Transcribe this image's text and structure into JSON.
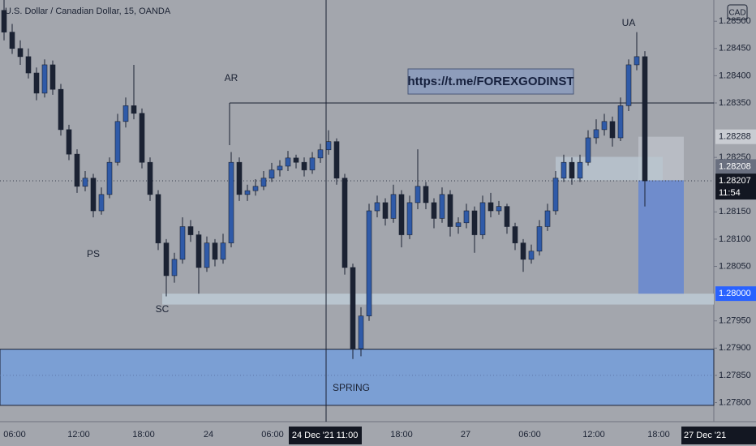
{
  "chart_data": {
    "type": "candlestick",
    "title": "U.S. Dollar / Canadian Dollar, 15, OANDA",
    "currency": "CAD",
    "link": "https://t.me/FOREXGODINST",
    "annotations": [
      "AR",
      "PS",
      "SC",
      "SPRING",
      "UA"
    ],
    "x_labels": [
      "06:00",
      "12:00",
      "18:00",
      "24",
      "06:00",
      "24 Dec '21",
      "11:00",
      "18:00",
      "27",
      "06:00",
      "12:00",
      "18:00",
      "27 Dec '21"
    ],
    "countdown": "11:54",
    "up_color": "#2f5aa8",
    "down_color": "#1b2233",
    "ylim": [
      1.27765,
      1.28539
    ],
    "yticks": [
      {
        "value": 1.285,
        "label": "1.28500"
      },
      {
        "value": 1.2845,
        "label": "1.28450"
      },
      {
        "value": 1.284,
        "label": "1.28400"
      },
      {
        "value": 1.2835,
        "label": "1.28350"
      },
      {
        "value": 1.2825,
        "label": "1.28250"
      },
      {
        "value": 1.2815,
        "label": "1.28150"
      },
      {
        "value": 1.281,
        "label": "1.28100"
      },
      {
        "value": 1.2805,
        "label": "1.28050"
      },
      {
        "value": 1.2795,
        "label": "1.27950"
      },
      {
        "value": 1.279,
        "label": "1.27900"
      },
      {
        "value": 1.2785,
        "label": "1.27850"
      },
      {
        "value": 1.278,
        "label": "1.27800"
      }
    ],
    "badges": [
      {
        "value": 1.28288,
        "label": "1.28288"
      },
      {
        "value": 1.28208,
        "label": "1.28208"
      },
      {
        "value": 1.28207,
        "label": "1.28207"
      },
      {
        "value": 1.28,
        "label": "1.28000"
      }
    ],
    "resistance": 1.2835,
    "support_zone": [
      1.28,
      1.2798
    ],
    "demand_zone": [
      1.27898,
      1.27795
    ],
    "candles": [
      [
        1.2852,
        1.2854,
        1.28465,
        1.2848
      ],
      [
        1.2848,
        1.28495,
        1.2844,
        1.2845
      ],
      [
        1.2845,
        1.28465,
        1.2842,
        1.28435
      ],
      [
        1.28435,
        1.2845,
        1.28395,
        1.28405
      ],
      [
        1.28405,
        1.28415,
        1.28355,
        1.28368
      ],
      [
        1.28368,
        1.2843,
        1.2836,
        1.2842
      ],
      [
        1.2842,
        1.28428,
        1.28365,
        1.28375
      ],
      [
        1.28375,
        1.28385,
        1.2829,
        1.28301
      ],
      [
        1.28301,
        1.2831,
        1.28245,
        1.28256
      ],
      [
        1.28256,
        1.28265,
        1.28185,
        1.28197
      ],
      [
        1.28197,
        1.28225,
        1.28188,
        1.28212
      ],
      [
        1.28212,
        1.2822,
        1.2814,
        1.28152
      ],
      [
        1.28152,
        1.28195,
        1.28145,
        1.28182
      ],
      [
        1.28182,
        1.2825,
        1.28175,
        1.28241
      ],
      [
        1.28241,
        1.2833,
        1.28235,
        1.28316
      ],
      [
        1.28316,
        1.2836,
        1.28305,
        1.28345
      ],
      [
        1.28345,
        1.2842,
        1.2832,
        1.28331
      ],
      [
        1.28331,
        1.2834,
        1.2823,
        1.28241
      ],
      [
        1.28241,
        1.2825,
        1.2817,
        1.28182
      ],
      [
        1.28182,
        1.2819,
        1.2808,
        1.28093
      ],
      [
        1.28093,
        1.281,
        1.27995,
        1.28033
      ],
      [
        1.28033,
        1.28075,
        1.2802,
        1.28063
      ],
      [
        1.28063,
        1.2814,
        1.28055,
        1.28123
      ],
      [
        1.28123,
        1.28135,
        1.28095,
        1.28108
      ],
      [
        1.28108,
        1.28115,
        1.28,
        1.28048
      ],
      [
        1.28048,
        1.28105,
        1.2804,
        1.28093
      ],
      [
        1.28093,
        1.281,
        1.2805,
        1.28063
      ],
      [
        1.28063,
        1.2811,
        1.28055,
        1.28093
      ],
      [
        1.28093,
        1.2826,
        1.28085,
        1.28241
      ],
      [
        1.28241,
        1.2825,
        1.2817,
        1.28182
      ],
      [
        1.28182,
        1.282,
        1.2817,
        1.28189
      ],
      [
        1.28189,
        1.2821,
        1.2818,
        1.28197
      ],
      [
        1.28197,
        1.28225,
        1.2819,
        1.28212
      ],
      [
        1.28212,
        1.2824,
        1.28205,
        1.28227
      ],
      [
        1.28227,
        1.28245,
        1.28215,
        1.28234
      ],
      [
        1.28234,
        1.28262,
        1.28225,
        1.28249
      ],
      [
        1.28249,
        1.28255,
        1.2823,
        1.28241
      ],
      [
        1.28241,
        1.2825,
        1.28215,
        1.28227
      ],
      [
        1.28227,
        1.2826,
        1.2822,
        1.28249
      ],
      [
        1.28249,
        1.28275,
        1.2824,
        1.28264
      ],
      [
        1.28264,
        1.283,
        1.28255,
        1.28279
      ],
      [
        1.28279,
        1.28285,
        1.282,
        1.28212
      ],
      [
        1.28212,
        1.2822,
        1.28035,
        1.28048
      ],
      [
        1.28048,
        1.28055,
        1.2788,
        1.27899
      ],
      [
        1.27899,
        1.27975,
        1.27885,
        1.27959
      ],
      [
        1.27959,
        1.28165,
        1.2795,
        1.28152
      ],
      [
        1.28152,
        1.2818,
        1.2814,
        1.28167
      ],
      [
        1.28167,
        1.28175,
        1.28125,
        1.28138
      ],
      [
        1.28138,
        1.282,
        1.2813,
        1.28182
      ],
      [
        1.28182,
        1.2819,
        1.28085,
        1.28108
      ],
      [
        1.28108,
        1.2818,
        1.281,
        1.28167
      ],
      [
        1.28167,
        1.28265,
        1.28155,
        1.28197
      ],
      [
        1.28197,
        1.28205,
        1.28155,
        1.28167
      ],
      [
        1.28167,
        1.28175,
        1.2812,
        1.28138
      ],
      [
        1.28138,
        1.28195,
        1.2813,
        1.28182
      ],
      [
        1.28182,
        1.2819,
        1.28105,
        1.28123
      ],
      [
        1.28123,
        1.2814,
        1.2811,
        1.2813
      ],
      [
        1.2813,
        1.28165,
        1.2812,
        1.28152
      ],
      [
        1.28152,
        1.2816,
        1.28075,
        1.28108
      ],
      [
        1.28108,
        1.2818,
        1.281,
        1.28167
      ],
      [
        1.28167,
        1.28185,
        1.2814,
        1.28152
      ],
      [
        1.28152,
        1.2817,
        1.28145,
        1.2816
      ],
      [
        1.2816,
        1.28165,
        1.2811,
        1.28123
      ],
      [
        1.28123,
        1.2813,
        1.2808,
        1.28093
      ],
      [
        1.28093,
        1.281,
        1.2804,
        1.28063
      ],
      [
        1.28063,
        1.2809,
        1.28055,
        1.28078
      ],
      [
        1.28078,
        1.28135,
        1.2807,
        1.28123
      ],
      [
        1.28123,
        1.28165,
        1.28115,
        1.28152
      ],
      [
        1.28152,
        1.28225,
        1.28145,
        1.28212
      ],
      [
        1.28212,
        1.28255,
        1.28205,
        1.28241
      ],
      [
        1.28241,
        1.2825,
        1.282,
        1.28212
      ],
      [
        1.28212,
        1.28255,
        1.28205,
        1.28241
      ],
      [
        1.28241,
        1.283,
        1.28235,
        1.28286
      ],
      [
        1.28286,
        1.2832,
        1.28275,
        1.28301
      ],
      [
        1.28301,
        1.2833,
        1.2829,
        1.28316
      ],
      [
        1.28316,
        1.28325,
        1.2827,
        1.28286
      ],
      [
        1.28286,
        1.2836,
        1.2828,
        1.28345
      ],
      [
        1.28345,
        1.2843,
        1.28335,
        1.2842
      ],
      [
        1.2842,
        1.2848,
        1.2841,
        1.28435
      ],
      [
        1.28435,
        1.28445,
        1.2816,
        1.28207
      ]
    ]
  }
}
